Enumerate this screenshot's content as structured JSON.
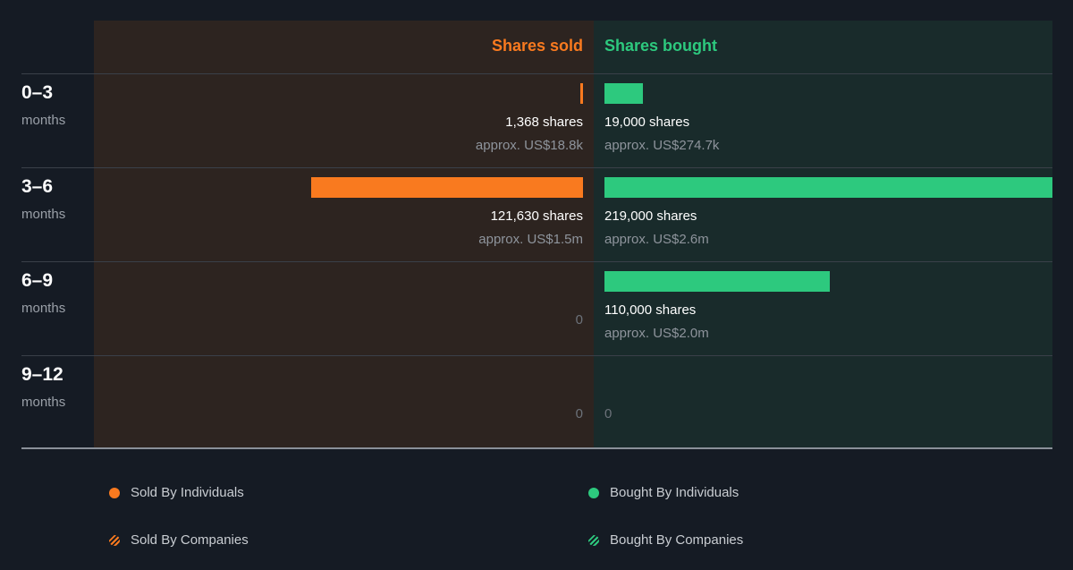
{
  "headers": {
    "sold": "Shares sold",
    "bought": "Shares bought"
  },
  "colors": {
    "sold": "#f97a1f",
    "bought": "#2dc97e",
    "sold_panel": "#2d2420",
    "bought_panel": "#192b2b",
    "background": "#151b24"
  },
  "legend": [
    {
      "label": "Sold By Individuals",
      "icon": "orange-dot-icon"
    },
    {
      "label": "Bought By Individuals",
      "icon": "green-dot-icon"
    },
    {
      "label": "Sold By Companies",
      "icon": "orange-striped-dot-icon"
    },
    {
      "label": "Bought By Companies",
      "icon": "green-striped-dot-icon"
    }
  ],
  "chart_data": {
    "type": "bar",
    "categories": [
      "0–3",
      "3–6",
      "6–9",
      "9–12"
    ],
    "category_unit": "months",
    "series": [
      {
        "name": "Shares sold",
        "values": [
          1368,
          121630,
          0,
          0
        ],
        "labels": [
          "1,368 shares",
          "121,630 shares",
          "0",
          "0"
        ],
        "approx": [
          "approx. US$18.8k",
          "approx. US$1.5m",
          "",
          ""
        ]
      },
      {
        "name": "Shares bought",
        "values": [
          19000,
          219000,
          110000,
          0
        ],
        "labels": [
          "19,000 shares",
          "219,000 shares",
          "110,000 shares",
          "0"
        ],
        "approx": [
          "approx. US$274.7k",
          "approx. US$2.6m",
          "approx. US$2.0m",
          ""
        ]
      }
    ],
    "max_value": 219000
  }
}
